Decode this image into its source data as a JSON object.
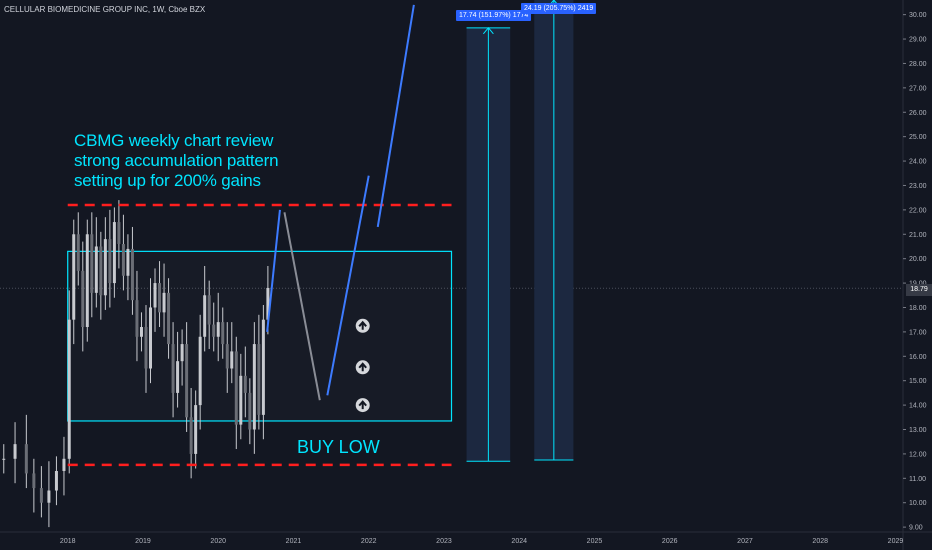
{
  "header": {
    "title": "CELLULAR BIOMEDICINE GROUP INC, 1W, Cboe BZX"
  },
  "annotation": {
    "lines": [
      "CBMG weekly chart review",
      "strong accumulation pattern",
      "setting up for 200% gains"
    ],
    "buy_low": "BUY LOW"
  },
  "measures": [
    {
      "label": "17.74 (151.97%) 1774"
    },
    {
      "label": "24.19 (205.75%) 2419"
    }
  ],
  "last_price": "18.79",
  "colors": {
    "background": "#131722",
    "candle": "#c8cacf",
    "cyan": "#00e5ff",
    "red_dashed": "#ff1e1e",
    "blue_line": "#3d7bff",
    "gray_line": "#8a8d96",
    "measure_fill": "#1c2840"
  },
  "chart_data": {
    "type": "candlestick",
    "title": "CELLULAR BIOMEDICINE GROUP INC, 1W, Cboe BZX",
    "x_ticks": [
      "2018",
      "2019",
      "2020",
      "2021",
      "2022",
      "2023",
      "2024",
      "2025",
      "2026",
      "2027",
      "2028",
      "2029"
    ],
    "y_ticks": [
      "9.00",
      "10.00",
      "11.00",
      "12.00",
      "13.00",
      "14.00",
      "15.00",
      "16.00",
      "17.00",
      "18.00",
      "19.00",
      "20.00",
      "21.00",
      "22.00",
      "23.00",
      "24.00",
      "25.00",
      "26.00",
      "27.00",
      "28.00",
      "29.00",
      "30.00"
    ],
    "ylim": [
      8.8,
      30.6
    ],
    "xlim": [
      2017.1,
      2029.1
    ],
    "closes": [
      [
        2017.15,
        11.8
      ],
      [
        2017.3,
        12.4
      ],
      [
        2017.45,
        11.2
      ],
      [
        2017.55,
        10.6
      ],
      [
        2017.65,
        10.0
      ],
      [
        2017.75,
        10.5
      ],
      [
        2017.85,
        11.3
      ],
      [
        2017.95,
        11.8
      ],
      [
        2018.02,
        17.5
      ],
      [
        2018.08,
        21.0
      ],
      [
        2018.14,
        19.5
      ],
      [
        2018.2,
        17.2
      ],
      [
        2018.26,
        21.0
      ],
      [
        2018.32,
        18.6
      ],
      [
        2018.38,
        20.5
      ],
      [
        2018.44,
        18.5
      ],
      [
        2018.5,
        20.8
      ],
      [
        2018.56,
        19.0
      ],
      [
        2018.62,
        21.5
      ],
      [
        2018.68,
        20.6
      ],
      [
        2018.74,
        19.3
      ],
      [
        2018.8,
        20.4
      ],
      [
        2018.86,
        18.3
      ],
      [
        2018.92,
        16.8
      ],
      [
        2018.98,
        17.2
      ],
      [
        2019.04,
        15.5
      ],
      [
        2019.1,
        18.0
      ],
      [
        2019.16,
        19.0
      ],
      [
        2019.22,
        17.8
      ],
      [
        2019.28,
        18.6
      ],
      [
        2019.34,
        16.5
      ],
      [
        2019.4,
        14.5
      ],
      [
        2019.46,
        15.8
      ],
      [
        2019.52,
        16.5
      ],
      [
        2019.58,
        13.5
      ],
      [
        2019.64,
        12.0
      ],
      [
        2019.7,
        14.0
      ],
      [
        2019.76,
        16.8
      ],
      [
        2019.82,
        18.5
      ],
      [
        2019.88,
        17.3
      ],
      [
        2019.94,
        16.8
      ],
      [
        2020.0,
        17.4
      ],
      [
        2020.06,
        16.5
      ],
      [
        2020.12,
        15.5
      ],
      [
        2020.18,
        16.2
      ],
      [
        2020.24,
        13.2
      ],
      [
        2020.3,
        15.2
      ],
      [
        2020.36,
        14.5
      ],
      [
        2020.42,
        13.0
      ],
      [
        2020.48,
        16.5
      ],
      [
        2020.54,
        13.6
      ],
      [
        2020.6,
        17.5
      ],
      [
        2020.66,
        18.8
      ]
    ],
    "levels": [
      {
        "name": "resistance",
        "value": 22.2,
        "x": [
          2018.0,
          2023.1
        ]
      },
      {
        "name": "support",
        "value": 11.55,
        "x": [
          2018.0,
          2023.1
        ]
      }
    ],
    "accumulation_box": {
      "x": [
        2018.0,
        2023.1
      ],
      "y": [
        13.35,
        20.3
      ]
    },
    "projection_path": [
      [
        2020.65,
        17.0
      ],
      [
        2020.82,
        22.0
      ]
    ],
    "projection_down": [
      [
        2020.88,
        21.9
      ],
      [
        2021.35,
        14.2
      ]
    ],
    "projection_up": [
      [
        2021.45,
        14.4
      ],
      [
        2022.0,
        23.4
      ]
    ],
    "projection_up2": [
      [
        2022.12,
        21.3
      ],
      [
        2022.6,
        30.4
      ]
    ],
    "measure_ranges": [
      {
        "x": [
          2023.3,
          2023.88
        ],
        "y": [
          11.7,
          29.46
        ],
        "change": 17.74,
        "percent": 151.97,
        "ticks": 1774
      },
      {
        "x": [
          2024.2,
          2024.72
        ],
        "y": [
          11.75,
          30.6
        ],
        "change": 24.19,
        "percent": 205.75,
        "ticks": 2419
      }
    ],
    "markers": [
      {
        "x": 2021.92,
        "y": 17.25
      },
      {
        "x": 2021.92,
        "y": 15.55
      },
      {
        "x": 2021.92,
        "y": 14.0
      }
    ],
    "last_price": 18.79
  }
}
